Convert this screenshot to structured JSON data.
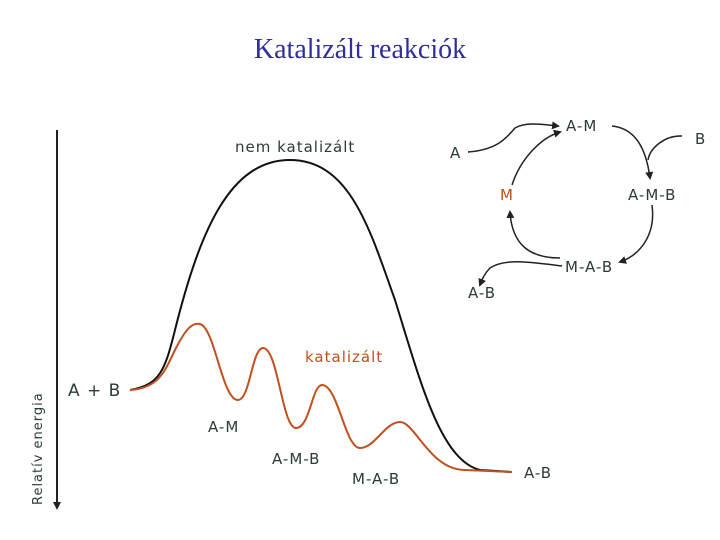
{
  "title": "Katalizált reakciók",
  "energy_diagram": {
    "y_axis_label": "Relatív energia",
    "uncatalyzed_label": "nem katalizált",
    "catalyzed_label": "katalizált",
    "species": [
      "A + B",
      "A-M",
      "A-M-B",
      "M-A-B",
      "A-B"
    ]
  },
  "cycle": {
    "nodes": [
      "A",
      "A-M",
      "B",
      "M",
      "A-M-B",
      "M-A-B",
      "A-B"
    ]
  }
}
